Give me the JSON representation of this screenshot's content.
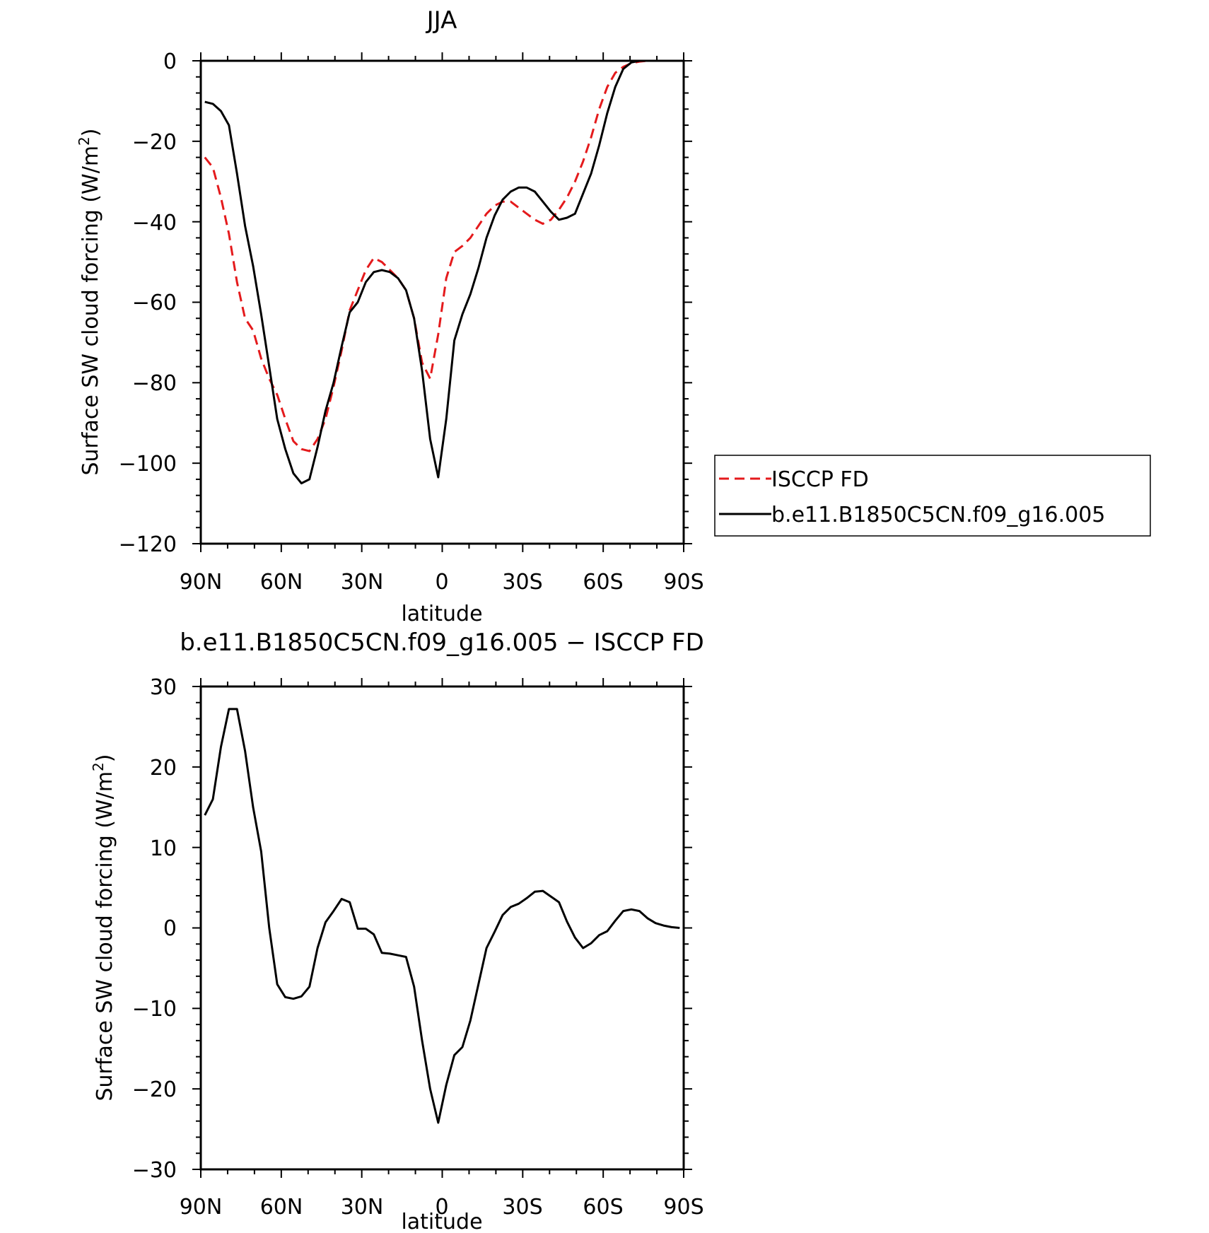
{
  "chart_data": [
    {
      "type": "line",
      "title": "JJA",
      "xlabel": "latitude",
      "ylabel": "Surface SW cloud forcing (W/m²)",
      "ylabel_main": "Surface SW cloud forcing (W/m",
      "ylabel_sup": "2",
      "ylabel_close": ")",
      "x_axis": "latitude, 90N (left) to 90S (right); 0 = equator",
      "xlim": [
        -90,
        90
      ],
      "ylim": [
        -120,
        0
      ],
      "xticks": [
        {
          "value": -90,
          "label": "90N"
        },
        {
          "value": -60,
          "label": "60N"
        },
        {
          "value": -30,
          "label": "30N"
        },
        {
          "value": 0,
          "label": "0"
        },
        {
          "value": 30,
          "label": "30S"
        },
        {
          "value": 60,
          "label": "60S"
        },
        {
          "value": 90,
          "label": "90S"
        }
      ],
      "yticks": [
        {
          "value": 0,
          "label": "0"
        },
        {
          "value": -20,
          "label": "−20"
        },
        {
          "value": -40,
          "label": "−40"
        },
        {
          "value": -60,
          "label": "−60"
        },
        {
          "value": -80,
          "label": "−80"
        },
        {
          "value": -100,
          "label": "−100"
        },
        {
          "value": -120,
          "label": "−120"
        }
      ],
      "legend_position": "right",
      "series": [
        {
          "name": "ISCCP FD",
          "color": "#e41a1c",
          "dash": "dashed",
          "points": [
            [
              -88.5,
              -24
            ],
            [
              -85.5,
              -26.5
            ],
            [
              -82.5,
              -34
            ],
            [
              -79.5,
              -43
            ],
            [
              -76.5,
              -55
            ],
            [
              -73.5,
              -64
            ],
            [
              -70.5,
              -67
            ],
            [
              -67.5,
              -74
            ],
            [
              -64.5,
              -79
            ],
            [
              -61.5,
              -83
            ],
            [
              -58.5,
              -89
            ],
            [
              -55.5,
              -94.5
            ],
            [
              -52.5,
              -96.5
            ],
            [
              -49.5,
              -97
            ],
            [
              -46.5,
              -94
            ],
            [
              -43.5,
              -89
            ],
            [
              -40.5,
              -81
            ],
            [
              -37.5,
              -72
            ],
            [
              -34.5,
              -62
            ],
            [
              -31.5,
              -57
            ],
            [
              -28.5,
              -52
            ],
            [
              -25.5,
              -49
            ],
            [
              -22.5,
              -50
            ],
            [
              -19.5,
              -52
            ],
            [
              -16.5,
              -54
            ],
            [
              -13.5,
              -57
            ],
            [
              -10.5,
              -64
            ],
            [
              -7.5,
              -75
            ],
            [
              -4.5,
              -79
            ],
            [
              -1.5,
              -68
            ],
            [
              1.5,
              -54
            ],
            [
              4.5,
              -47.5
            ],
            [
              7.5,
              -46
            ],
            [
              10.5,
              -44
            ],
            [
              13.5,
              -41
            ],
            [
              16.5,
              -38
            ],
            [
              19.5,
              -36
            ],
            [
              22.5,
              -35
            ],
            [
              25.5,
              -35
            ],
            [
              28.5,
              -36.5
            ],
            [
              31.5,
              -38
            ],
            [
              34.5,
              -39.5
            ],
            [
              37.5,
              -40.5
            ],
            [
              40.5,
              -39.5
            ],
            [
              43.5,
              -37
            ],
            [
              46.5,
              -34
            ],
            [
              49.5,
              -30
            ],
            [
              52.5,
              -25
            ],
            [
              55.5,
              -19
            ],
            [
              58.5,
              -12
            ],
            [
              61.5,
              -6.5
            ],
            [
              64.5,
              -3
            ],
            [
              67.5,
              -1.5
            ],
            [
              70.5,
              -0.6
            ],
            [
              73.5,
              -0.2
            ],
            [
              76.5,
              0
            ],
            [
              79.5,
              0
            ],
            [
              82.5,
              0
            ],
            [
              85.5,
              0
            ],
            [
              88.5,
              0
            ]
          ]
        },
        {
          "name": "b.e11.B1850C5CN.f09_g16.005",
          "color": "#000000",
          "dash": "solid",
          "points": [
            [
              -88.5,
              -10.2
            ],
            [
              -85.5,
              -10.7
            ],
            [
              -82.5,
              -12.5
            ],
            [
              -79.5,
              -16
            ],
            [
              -76.5,
              -28
            ],
            [
              -73.5,
              -41
            ],
            [
              -70.5,
              -51
            ],
            [
              -67.5,
              -63
            ],
            [
              -64.5,
              -76
            ],
            [
              -61.5,
              -89
            ],
            [
              -58.5,
              -96.5
            ],
            [
              -55.5,
              -102.5
            ],
            [
              -52.5,
              -105
            ],
            [
              -49.5,
              -104
            ],
            [
              -46.5,
              -96
            ],
            [
              -43.5,
              -87
            ],
            [
              -40.5,
              -80
            ],
            [
              -37.5,
              -71
            ],
            [
              -34.5,
              -62.5
            ],
            [
              -31.5,
              -60
            ],
            [
              -28.5,
              -55
            ],
            [
              -25.5,
              -52.5
            ],
            [
              -22.5,
              -52
            ],
            [
              -19.5,
              -52.5
            ],
            [
              -16.5,
              -54
            ],
            [
              -13.5,
              -57
            ],
            [
              -10.5,
              -64
            ],
            [
              -7.5,
              -77
            ],
            [
              -4.5,
              -94
            ],
            [
              -1.5,
              -103.5
            ],
            [
              1.5,
              -89
            ],
            [
              4.5,
              -69.5
            ],
            [
              7.5,
              -63
            ],
            [
              10.5,
              -58
            ],
            [
              13.5,
              -51.5
            ],
            [
              16.5,
              -44
            ],
            [
              19.5,
              -38.5
            ],
            [
              22.5,
              -34.5
            ],
            [
              25.5,
              -32.5
            ],
            [
              28.5,
              -31.5
            ],
            [
              31.5,
              -31.5
            ],
            [
              34.5,
              -32.5
            ],
            [
              37.5,
              -35
            ],
            [
              40.5,
              -37.5
            ],
            [
              43.5,
              -39.5
            ],
            [
              46.5,
              -39
            ],
            [
              49.5,
              -38
            ],
            [
              52.5,
              -33
            ],
            [
              55.5,
              -28
            ],
            [
              58.5,
              -21
            ],
            [
              61.5,
              -13
            ],
            [
              64.5,
              -6.5
            ],
            [
              67.5,
              -2
            ],
            [
              70.5,
              -0.4
            ],
            [
              73.5,
              0
            ],
            [
              76.5,
              0
            ],
            [
              79.5,
              0
            ],
            [
              82.5,
              0
            ],
            [
              85.5,
              0
            ],
            [
              88.5,
              0
            ]
          ]
        }
      ]
    },
    {
      "type": "line",
      "title": "b.e11.B1850C5CN.f09_g16.005 − ISCCP FD",
      "xlabel": "latitude",
      "ylabel": "Surface SW cloud forcing (W/m²)",
      "ylabel_main": "Surface SW cloud forcing (W/m",
      "ylabel_sup": "2",
      "ylabel_close": ")",
      "xlim": [
        -90,
        90
      ],
      "ylim": [
        -30,
        30
      ],
      "xticks": [
        {
          "value": -90,
          "label": "90N"
        },
        {
          "value": -60,
          "label": "60N"
        },
        {
          "value": -30,
          "label": "30N"
        },
        {
          "value": 0,
          "label": "0"
        },
        {
          "value": 30,
          "label": "30S"
        },
        {
          "value": 60,
          "label": "60S"
        },
        {
          "value": 90,
          "label": "90S"
        }
      ],
      "yticks": [
        {
          "value": 30,
          "label": "30"
        },
        {
          "value": 20,
          "label": "20"
        },
        {
          "value": 10,
          "label": "10"
        },
        {
          "value": 0,
          "label": "0"
        },
        {
          "value": -10,
          "label": "−10"
        },
        {
          "value": -20,
          "label": "−20"
        },
        {
          "value": -30,
          "label": "−30"
        }
      ],
      "series": [
        {
          "color": "#000000",
          "dash": "solid",
          "points": [
            [
              -88.5,
              14
            ],
            [
              -85.5,
              16
            ],
            [
              -82.5,
              22.5
            ],
            [
              -79.5,
              27.2
            ],
            [
              -76.5,
              27.2
            ],
            [
              -73.5,
              22
            ],
            [
              -70.5,
              15
            ],
            [
              -67.5,
              9.5
            ],
            [
              -64.5,
              0
            ],
            [
              -61.5,
              -7
            ],
            [
              -58.5,
              -8.6
            ],
            [
              -55.5,
              -8.8
            ],
            [
              -52.5,
              -8.5
            ],
            [
              -49.5,
              -7.3
            ],
            [
              -46.5,
              -2.5
            ],
            [
              -43.5,
              0.7
            ],
            [
              -40.5,
              2.1
            ],
            [
              -37.5,
              3.6
            ],
            [
              -34.5,
              3.2
            ],
            [
              -31.5,
              -0.1
            ],
            [
              -28.5,
              -0.1
            ],
            [
              -25.5,
              -0.8
            ],
            [
              -22.5,
              -3.1
            ],
            [
              -19.5,
              -3.2
            ],
            [
              -16.5,
              -3.4
            ],
            [
              -13.5,
              -3.6
            ],
            [
              -10.5,
              -7.3
            ],
            [
              -7.5,
              -14
            ],
            [
              -4.5,
              -20
            ],
            [
              -1.5,
              -24.2
            ],
            [
              1.5,
              -19.5
            ],
            [
              4.5,
              -15.8
            ],
            [
              7.5,
              -14.8
            ],
            [
              10.5,
              -11.5
            ],
            [
              13.5,
              -7
            ],
            [
              16.5,
              -2.5
            ],
            [
              19.5,
              -0.5
            ],
            [
              22.5,
              1.6
            ],
            [
              25.5,
              2.6
            ],
            [
              28.5,
              3
            ],
            [
              31.5,
              3.7
            ],
            [
              34.5,
              4.5
            ],
            [
              37.5,
              4.6
            ],
            [
              40.5,
              3.9
            ],
            [
              43.5,
              3.2
            ],
            [
              46.5,
              0.8
            ],
            [
              49.5,
              -1.2
            ],
            [
              52.5,
              -2.5
            ],
            [
              55.5,
              -1.9
            ],
            [
              58.5,
              -0.9
            ],
            [
              61.5,
              -0.4
            ],
            [
              64.5,
              0.9
            ],
            [
              67.5,
              2.1
            ],
            [
              70.5,
              2.3
            ],
            [
              73.5,
              2.1
            ],
            [
              76.5,
              1.2
            ],
            [
              79.5,
              0.6
            ],
            [
              82.5,
              0.3
            ],
            [
              85.5,
              0.1
            ],
            [
              88.5,
              0
            ]
          ]
        }
      ]
    }
  ]
}
